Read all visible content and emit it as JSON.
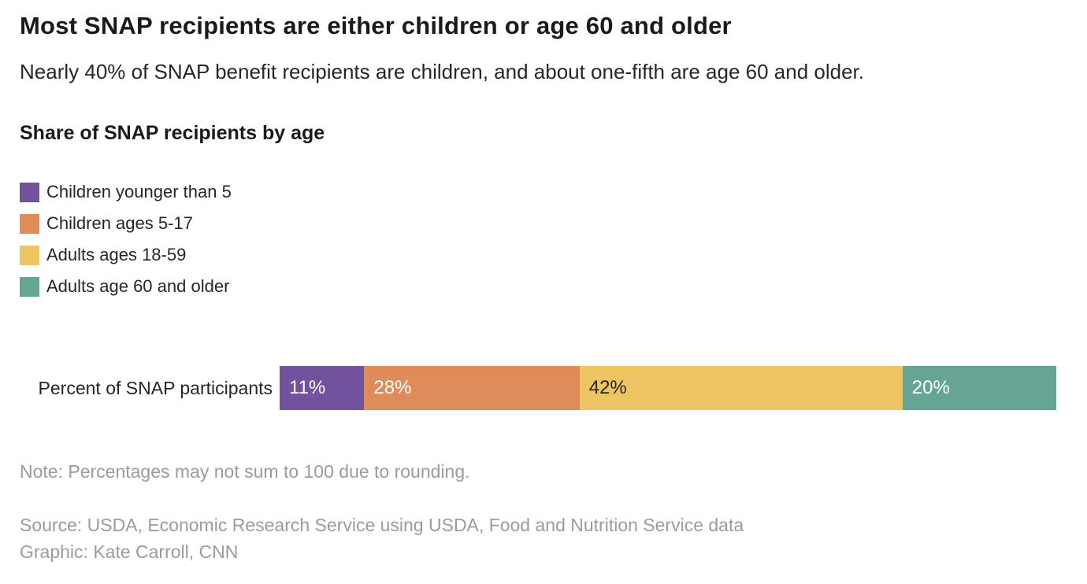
{
  "header": {
    "title": "Most SNAP recipients are either children or age 60 and older",
    "subtitle": "Nearly 40% of SNAP benefit recipients are children, and about one-fifth are age 60 and older."
  },
  "chart_data": {
    "type": "bar",
    "variant": "stacked-horizontal",
    "title": "Share of SNAP recipients by age",
    "categories": [
      "Percent of SNAP participants"
    ],
    "series": [
      {
        "name": "Children younger than 5",
        "values": [
          11
        ],
        "label": "11%",
        "color": "#72519E",
        "label_color": "#ffffff"
      },
      {
        "name": "Children ages 5-17",
        "values": [
          28
        ],
        "label": "28%",
        "color": "#E08B5A",
        "label_color": "#ffffff"
      },
      {
        "name": "Adults ages 18-59",
        "values": [
          42
        ],
        "label": "42%",
        "color": "#EFC463",
        "label_color": "#262626"
      },
      {
        "name": "Adults age 60 and older",
        "values": [
          20
        ],
        "label": "20%",
        "color": "#66A494",
        "label_color": "#ffffff"
      }
    ],
    "value_format": "percent",
    "xlim": [
      0,
      101
    ],
    "legend_position": "top-left",
    "grid": false,
    "axes_visible": false
  },
  "footer": {
    "note": "Note: Percentages may not sum to 100 due to rounding.",
    "source": "Source: USDA, Economic Research Service using USDA, Food and Nutrition Service data",
    "credit": "Graphic: Kate Carroll, CNN"
  }
}
